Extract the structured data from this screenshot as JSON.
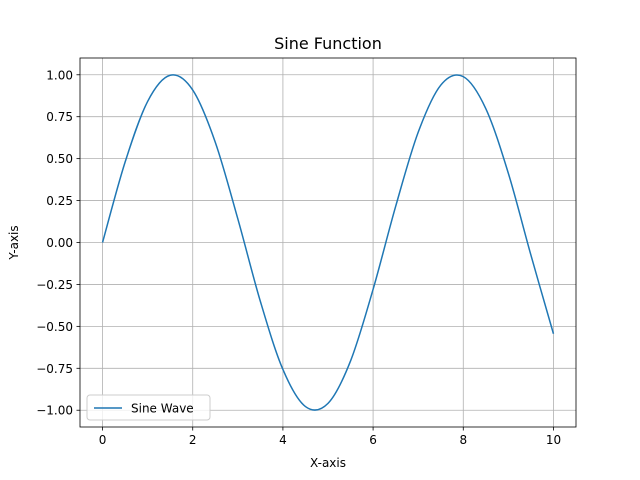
{
  "chart_data": {
    "type": "line",
    "title": "Sine Function",
    "xlabel": "X-axis",
    "ylabel": "Y-axis",
    "xlim": [
      -0.5,
      10.5
    ],
    "ylim": [
      -1.1,
      1.1
    ],
    "x_ticks": [
      0,
      2,
      4,
      6,
      8,
      10
    ],
    "x_tick_labels": [
      "0",
      "2",
      "4",
      "6",
      "8",
      "10"
    ],
    "y_ticks": [
      -1.0,
      -0.75,
      -0.5,
      -0.25,
      0.0,
      0.25,
      0.5,
      0.75,
      1.0
    ],
    "y_tick_labels": [
      "−1.00",
      "−0.75",
      "−0.50",
      "−0.25",
      "0.00",
      "0.25",
      "0.50",
      "0.75",
      "1.00"
    ],
    "grid": true,
    "legend_position": "lower-left",
    "series": [
      {
        "name": "Sine Wave",
        "color": "#1f77b4",
        "x": [
          0,
          0.5,
          1,
          1.5,
          2,
          2.5,
          3,
          3.5,
          4,
          4.5,
          5,
          5.5,
          6,
          6.5,
          7,
          7.5,
          8,
          8.5,
          9,
          9.5,
          10
        ],
        "y": [
          0.0,
          0.479,
          0.841,
          0.997,
          0.909,
          0.598,
          0.141,
          -0.351,
          -0.757,
          -0.978,
          -0.959,
          -0.706,
          -0.279,
          0.215,
          0.657,
          0.938,
          0.989,
          0.798,
          0.412,
          -0.075,
          -0.544
        ]
      }
    ]
  }
}
